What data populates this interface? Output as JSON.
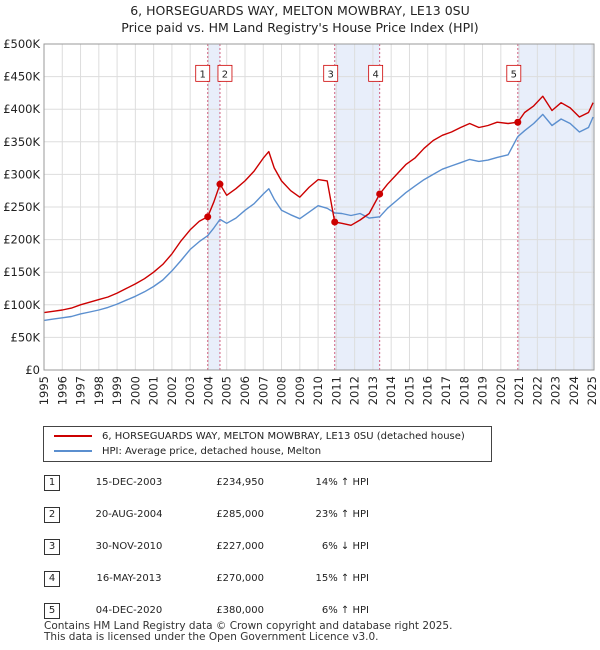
{
  "title_line1": "6, HORSEGUARDS WAY, MELTON MOWBRAY, LE13 0SU",
  "title_line2": "Price paid vs. HM Land Registry's House Price Index (HPI)",
  "colors": {
    "property": "#cc0000",
    "hpi": "#5b8fcf",
    "shade": "#e8eefa",
    "marker_line": "#d06080"
  },
  "legend": {
    "property": "6, HORSEGUARDS WAY, MELTON MOWBRAY, LE13 0SU (detached house)",
    "hpi": "HPI: Average price, detached house, Melton"
  },
  "transactions": [
    {
      "num": "1",
      "date": "15-DEC-2003",
      "price": "£234,950",
      "hpi": "14% ↑ HPI"
    },
    {
      "num": "2",
      "date": "20-AUG-2004",
      "price": "£285,000",
      "hpi": "23% ↑ HPI"
    },
    {
      "num": "3",
      "date": "30-NOV-2010",
      "price": "£227,000",
      "hpi": "6% ↓ HPI"
    },
    {
      "num": "4",
      "date": "16-MAY-2013",
      "price": "£270,000",
      "hpi": "15% ↑ HPI"
    },
    {
      "num": "5",
      "date": "04-DEC-2020",
      "price": "£380,000",
      "hpi": "6% ↑ HPI"
    }
  ],
  "footer_line1": "Contains HM Land Registry data © Crown copyright and database right 2025.",
  "footer_line2": "This data is licensed under the Open Government Licence v3.0.",
  "chart_data": {
    "type": "line",
    "title": "6, HORSEGUARDS WAY, MELTON MOWBRAY, LE13 0SU — Price paid vs. HM Land Registry's House Price Index (HPI)",
    "xlabel": "",
    "ylabel": "",
    "xlim": [
      1995,
      2025.1
    ],
    "ylim": [
      0,
      500000
    ],
    "x_ticks": [
      1995,
      1996,
      1997,
      1998,
      1999,
      2000,
      2001,
      2002,
      2003,
      2004,
      2005,
      2006,
      2007,
      2008,
      2009,
      2010,
      2011,
      2012,
      2013,
      2014,
      2015,
      2016,
      2017,
      2018,
      2019,
      2020,
      2021,
      2022,
      2023,
      2024,
      2025
    ],
    "x_tick_labels": [
      "1995",
      "1996",
      "1997",
      "1998",
      "1999",
      "2000",
      "2001",
      "2002",
      "2003",
      "2004",
      "2005",
      "2006",
      "2007",
      "2008",
      "2009",
      "2010",
      "2011",
      "2012",
      "2013",
      "2014",
      "2015",
      "2016",
      "2017",
      "2018",
      "2019",
      "2020",
      "2021",
      "2022",
      "2023",
      "2024",
      "2025"
    ],
    "y_ticks": [
      0,
      50000,
      100000,
      150000,
      200000,
      250000,
      300000,
      350000,
      400000,
      450000,
      500000
    ],
    "y_tick_labels": [
      "£0",
      "£50K",
      "£100K",
      "£150K",
      "£200K",
      "£250K",
      "£300K",
      "£350K",
      "£400K",
      "£450K",
      "£500K"
    ],
    "grid": true,
    "shaded_ranges": [
      [
        2003.96,
        2004.63
      ],
      [
        2010.91,
        2013.37
      ],
      [
        2020.93,
        2025.1
      ]
    ],
    "series": [
      {
        "name": "6, HORSEGUARDS WAY, MELTON MOWBRAY, LE13 0SU (detached house)",
        "x": [
          1995,
          1995.5,
          1996,
          1996.5,
          1997,
          1997.5,
          1998,
          1998.5,
          1999,
          1999.5,
          2000,
          2000.5,
          2001,
          2001.5,
          2002,
          2002.5,
          2003,
          2003.5,
          2003.96,
          2004.3,
          2004.63,
          2005,
          2005.5,
          2006,
          2006.5,
          2007,
          2007.3,
          2007.6,
          2008,
          2008.5,
          2009,
          2009.5,
          2010,
          2010.5,
          2010.91,
          2011.3,
          2011.8,
          2012.3,
          2012.8,
          2013.37,
          2013.8,
          2014.3,
          2014.8,
          2015.3,
          2015.8,
          2016.3,
          2016.8,
          2017.3,
          2017.8,
          2018.3,
          2018.8,
          2019.3,
          2019.8,
          2020.4,
          2020.93,
          2021.3,
          2021.8,
          2022.3,
          2022.8,
          2023.3,
          2023.8,
          2024.3,
          2024.8,
          2025.05
        ],
        "y": [
          88000,
          90000,
          92000,
          95000,
          100000,
          104000,
          108000,
          112000,
          118000,
          125000,
          132000,
          140000,
          150000,
          162000,
          178000,
          198000,
          215000,
          228000,
          234950,
          258000,
          285000,
          268000,
          278000,
          290000,
          305000,
          325000,
          335000,
          310000,
          290000,
          275000,
          265000,
          280000,
          292000,
          290000,
          227000,
          225000,
          222000,
          230000,
          240000,
          270000,
          285000,
          300000,
          315000,
          325000,
          340000,
          352000,
          360000,
          365000,
          372000,
          378000,
          372000,
          375000,
          380000,
          378000,
          380000,
          395000,
          405000,
          420000,
          398000,
          410000,
          402000,
          388000,
          395000,
          410000
        ]
      },
      {
        "name": "HPI: Average price, detached house, Melton",
        "x": [
          1995,
          1995.5,
          1996,
          1996.5,
          1997,
          1997.5,
          1998,
          1998.5,
          1999,
          1999.5,
          2000,
          2000.5,
          2001,
          2001.5,
          2002,
          2002.5,
          2003,
          2003.5,
          2003.96,
          2004.3,
          2004.63,
          2005,
          2005.5,
          2006,
          2006.5,
          2007,
          2007.3,
          2007.6,
          2008,
          2008.5,
          2009,
          2009.5,
          2010,
          2010.5,
          2010.91,
          2011.3,
          2011.8,
          2012.3,
          2012.8,
          2013.37,
          2013.8,
          2014.3,
          2014.8,
          2015.3,
          2015.8,
          2016.3,
          2016.8,
          2017.3,
          2017.8,
          2018.3,
          2018.8,
          2019.3,
          2019.8,
          2020.4,
          2020.93,
          2021.3,
          2021.8,
          2022.3,
          2022.8,
          2023.3,
          2023.8,
          2024.3,
          2024.8,
          2025.05
        ],
        "y": [
          76000,
          78000,
          80000,
          82000,
          86000,
          89000,
          92000,
          96000,
          101000,
          107000,
          113000,
          120000,
          128000,
          138000,
          152000,
          168000,
          185000,
          197000,
          206000,
          218000,
          231000,
          225000,
          233000,
          245000,
          255000,
          270000,
          278000,
          262000,
          245000,
          238000,
          232000,
          242000,
          252000,
          248000,
          241000,
          240000,
          237000,
          240000,
          233000,
          235000,
          248000,
          260000,
          272000,
          282000,
          292000,
          300000,
          308000,
          313000,
          318000,
          323000,
          320000,
          322000,
          326000,
          330000,
          358000,
          367000,
          378000,
          392000,
          375000,
          385000,
          378000,
          365000,
          372000,
          388000
        ]
      }
    ],
    "sales": [
      {
        "label": "1",
        "x": 2003.96,
        "y": 234950
      },
      {
        "label": "2",
        "x": 2004.63,
        "y": 285000
      },
      {
        "label": "3",
        "x": 2010.91,
        "y": 227000
      },
      {
        "label": "4",
        "x": 2013.37,
        "y": 270000
      },
      {
        "label": "5",
        "x": 2020.93,
        "y": 380000
      }
    ]
  }
}
